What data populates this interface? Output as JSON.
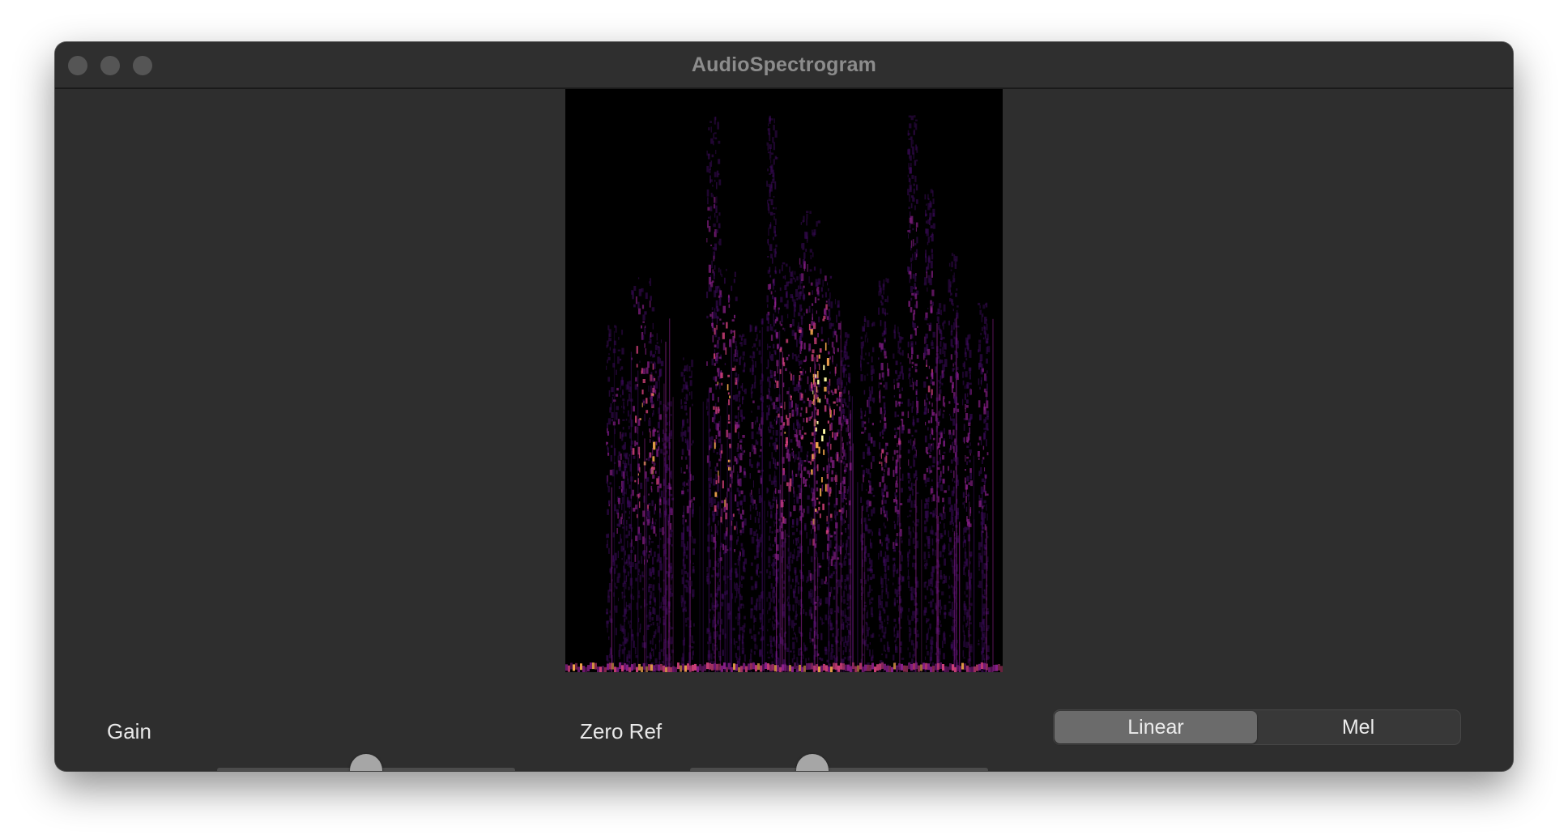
{
  "window": {
    "title": "AudioSpectrogram"
  },
  "spectrogram": {
    "colormap": [
      "#000000",
      "#3b0a5a",
      "#8a1f8a",
      "#d0407a",
      "#f2a64a",
      "#fbf5a0"
    ]
  },
  "controls": {
    "gain": {
      "label": "Gain",
      "value_fraction": 0.5
    },
    "zero_ref": {
      "label": "Zero Ref",
      "value_fraction": 0.41
    },
    "mode": {
      "options": [
        "Linear",
        "Mel"
      ],
      "selected": "Linear"
    }
  }
}
